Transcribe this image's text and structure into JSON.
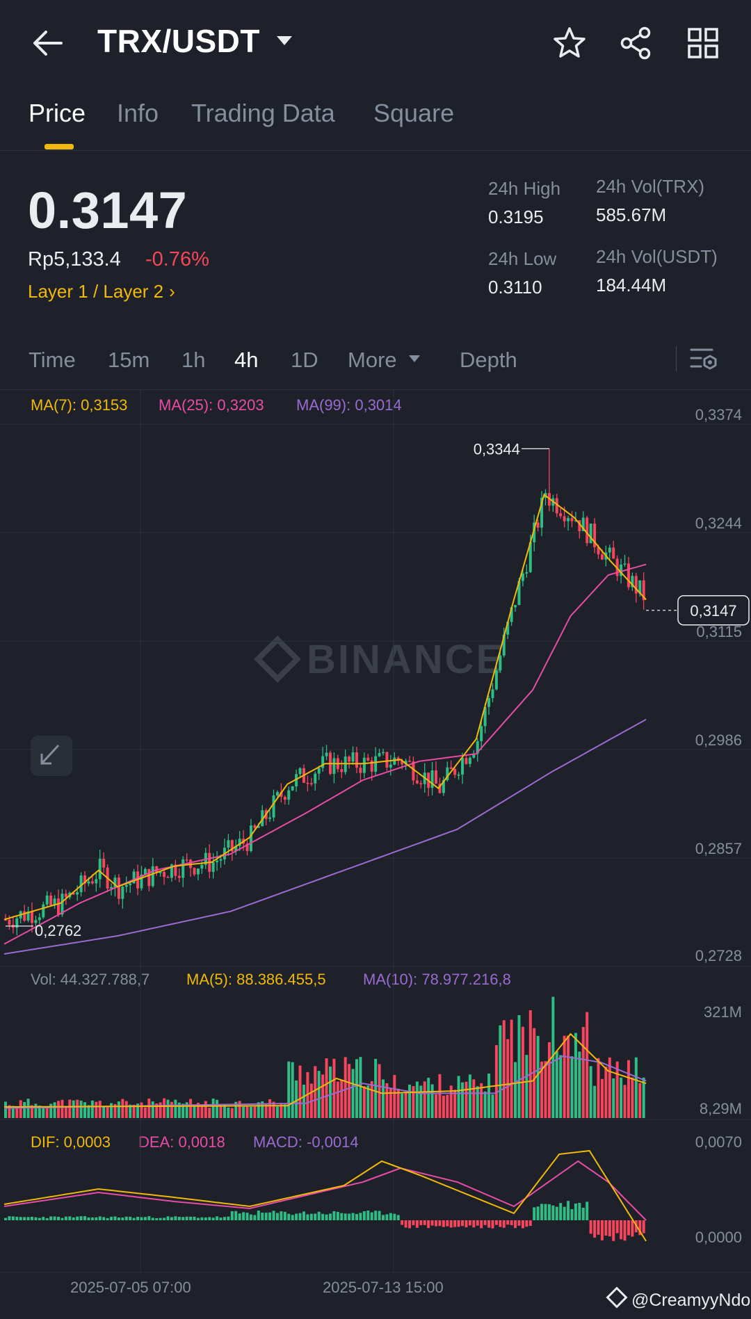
{
  "header": {
    "pair": "TRX/USDT",
    "icons": [
      "back-arrow-icon",
      "chevron-down-icon",
      "star-icon",
      "share-icon",
      "grid-icon"
    ]
  },
  "tabs": [
    {
      "label": "Price",
      "active": true
    },
    {
      "label": "Info",
      "active": false
    },
    {
      "label": "Trading Data",
      "active": false
    },
    {
      "label": "Square",
      "active": false
    }
  ],
  "ticker": {
    "price": "0.3147",
    "fiat": "Rp5,133.4",
    "change": "-0.76%",
    "category": "Layer 1 / Layer 2",
    "high_label": "24h High",
    "high": "0.3195",
    "low_label": "24h Low",
    "low": "0.3110",
    "vol_trx_label": "24h Vol(TRX)",
    "vol_trx": "585.67M",
    "vol_usdt_label": "24h Vol(USDT)",
    "vol_usdt": "184.44M",
    "colors": {
      "up": "#2ebd85",
      "down": "#f6465d",
      "accent": "#f0b90b"
    }
  },
  "intervals": {
    "items": [
      {
        "label": "Time",
        "active": false
      },
      {
        "label": "15m",
        "active": false
      },
      {
        "label": "1h",
        "active": false
      },
      {
        "label": "4h",
        "active": true
      },
      {
        "label": "1D",
        "active": false
      },
      {
        "label": "More",
        "active": false
      },
      {
        "label": "Depth",
        "active": false
      }
    ]
  },
  "legend": {
    "ma7": "MA(7): 0,3153",
    "ma25": "MA(25): 0,3203",
    "ma99": "MA(99): 0,3014",
    "vol": "Vol: 44.327.788,7",
    "vma5": "MA(5): 88.386.455,5",
    "vma10": "MA(10): 78.977.216,8",
    "dif": "DIF: 0,0003",
    "dea": "DEA: 0,0018",
    "macd": "MACD: -0,0014"
  },
  "watermark": "BINANCE",
  "credit": "@CreamyyNdo",
  "chart_data": [
    {
      "type": "candlestick",
      "interval": "4h",
      "y_ticks": [
        "0,3374",
        "0,3244",
        "0,3115",
        "0,2986",
        "0,2857",
        "0,2728"
      ],
      "ylim": [
        0.2728,
        0.3374
      ],
      "x_ticks": [
        "2025-07-05 07:00",
        "2025-07-13 15:00"
      ],
      "high_marker": "0,3344",
      "low_marker": "0,2762",
      "last_price": "0,3147",
      "series_ma7_label": "MA(7)",
      "ma7_key": [
        [
          0,
          0.277
        ],
        [
          15,
          0.279
        ],
        [
          25,
          0.283
        ],
        [
          30,
          0.281
        ],
        [
          45,
          0.2835
        ],
        [
          55,
          0.284
        ],
        [
          65,
          0.287
        ],
        [
          75,
          0.2935
        ],
        [
          85,
          0.296
        ],
        [
          95,
          0.296
        ],
        [
          105,
          0.2965
        ],
        [
          115,
          0.293
        ],
        [
          125,
          0.299
        ],
        [
          135,
          0.316
        ],
        [
          143,
          0.3288
        ],
        [
          151,
          0.326
        ],
        [
          160,
          0.321
        ],
        [
          170,
          0.316
        ]
      ],
      "ma25_key": [
        [
          0,
          0.274
        ],
        [
          20,
          0.279
        ],
        [
          40,
          0.283
        ],
        [
          60,
          0.285
        ],
        [
          80,
          0.29
        ],
        [
          95,
          0.294
        ],
        [
          110,
          0.2963
        ],
        [
          125,
          0.2972
        ],
        [
          140,
          0.305
        ],
        [
          150,
          0.314
        ],
        [
          160,
          0.319
        ],
        [
          170,
          0.3203
        ]
      ],
      "ma99_key": [
        [
          0,
          0.2728
        ],
        [
          30,
          0.275
        ],
        [
          60,
          0.278
        ],
        [
          90,
          0.283
        ],
        [
          120,
          0.288
        ],
        [
          145,
          0.295
        ],
        [
          170,
          0.3014
        ]
      ]
    },
    {
      "type": "bar",
      "name": "Vol",
      "y_ticks": [
        "321M",
        "8,29M"
      ],
      "ylim": [
        8.29,
        321
      ]
    },
    {
      "type": "bar",
      "name": "MACD",
      "y_ticks": [
        "0,0070",
        "0,0000"
      ]
    }
  ]
}
